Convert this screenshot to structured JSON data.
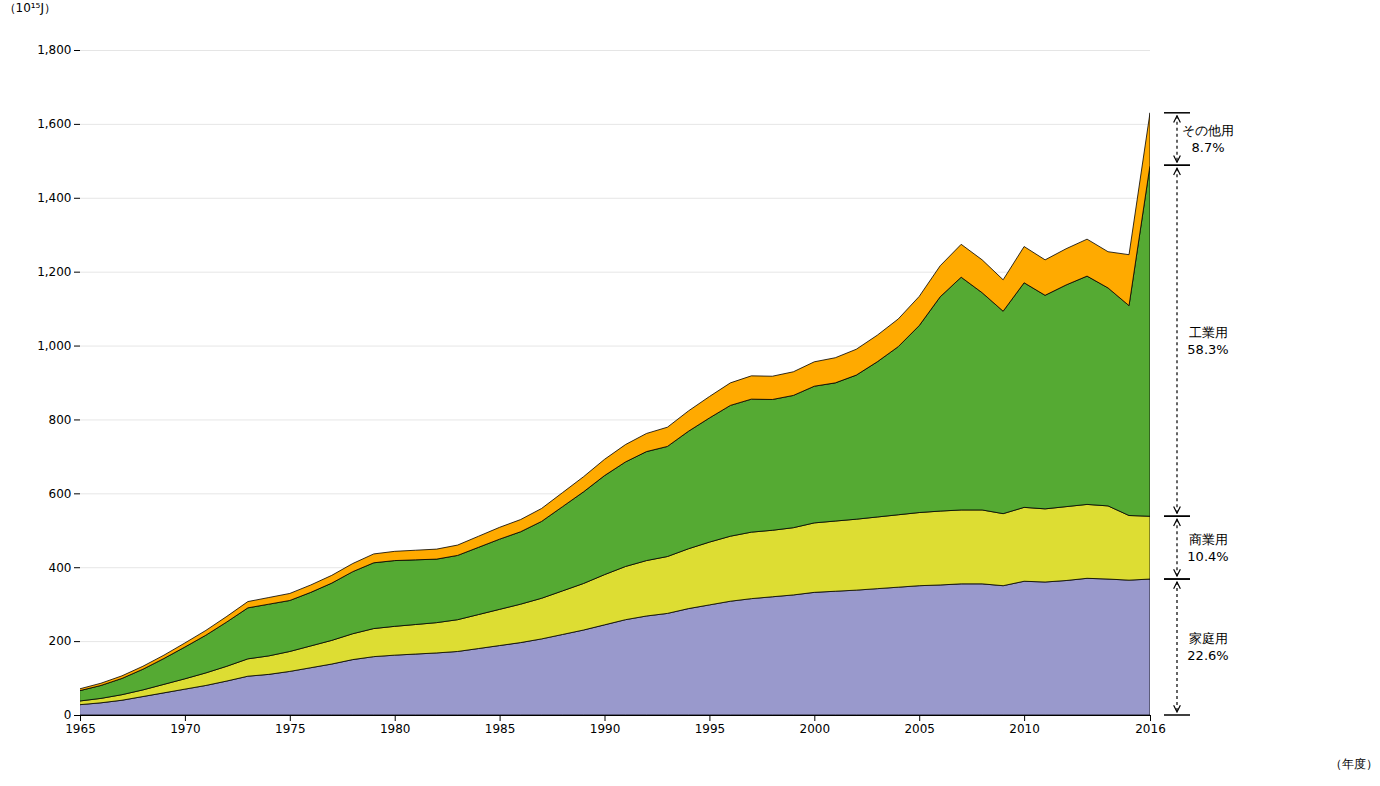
{
  "chart_data": {
    "type": "area",
    "stacked": true,
    "x": [
      1965,
      1966,
      1967,
      1968,
      1969,
      1970,
      1971,
      1972,
      1973,
      1974,
      1975,
      1976,
      1977,
      1978,
      1979,
      1980,
      1981,
      1982,
      1983,
      1984,
      1985,
      1986,
      1987,
      1988,
      1989,
      1990,
      1991,
      1992,
      1993,
      1994,
      1995,
      1996,
      1997,
      1998,
      1999,
      2000,
      2001,
      2002,
      2003,
      2004,
      2005,
      2006,
      2007,
      2008,
      2009,
      2010,
      2011,
      2012,
      2013,
      2014,
      2015,
      2016
    ],
    "series": [
      {
        "name": "家庭用",
        "color": "#9999cc",
        "values": [
          28,
          33,
          40,
          50,
          60,
          70,
          80,
          92,
          105,
          110,
          118,
          128,
          138,
          150,
          158,
          162,
          165,
          168,
          172,
          180,
          188,
          196,
          206,
          218,
          230,
          244,
          258,
          268,
          275,
          288,
          298,
          308,
          315,
          320,
          325,
          332,
          335,
          338,
          342,
          346,
          350,
          352,
          355,
          355,
          350,
          362,
          360,
          364,
          370,
          368,
          365,
          368
        ]
      },
      {
        "name": "商業用",
        "color": "#dddd33",
        "values": [
          10,
          12,
          15,
          18,
          23,
          28,
          34,
          40,
          47,
          50,
          54,
          59,
          64,
          70,
          76,
          78,
          80,
          82,
          86,
          92,
          98,
          104,
          110,
          118,
          126,
          136,
          144,
          150,
          154,
          162,
          170,
          176,
          180,
          180,
          182,
          188,
          190,
          192,
          194,
          196,
          198,
          200,
          200,
          200,
          195,
          200,
          198,
          200,
          200,
          198,
          175,
          170
        ]
      },
      {
        "name": "工業用",
        "color": "#55aa33",
        "values": [
          28,
          35,
          44,
          56,
          70,
          86,
          102,
          120,
          138,
          140,
          138,
          145,
          155,
          168,
          178,
          178,
          175,
          172,
          174,
          182,
          190,
          196,
          208,
          228,
          248,
          268,
          283,
          295,
          298,
          318,
          336,
          354,
          360,
          354,
          358,
          370,
          374,
          390,
          420,
          455,
          506,
          580,
          630,
          588,
          548,
          608,
          578,
          600,
          618,
          590,
          568,
          950
        ]
      },
      {
        "name": "その他用",
        "color": "#ffaa00",
        "values": [
          5,
          6,
          7,
          8,
          9,
          11,
          13,
          15,
          17,
          18,
          19,
          20,
          21,
          22,
          24,
          25,
          26,
          27,
          28,
          30,
          32,
          33,
          35,
          38,
          41,
          44,
          47,
          49,
          52,
          55,
          58,
          61,
          63,
          63,
          64,
          66,
          68,
          70,
          72,
          75,
          79,
          84,
          89,
          89,
          85,
          98,
          96,
          98,
          100,
          98,
          138,
          142
        ]
      }
    ],
    "xlabel": "（年度）",
    "ylabel": "（10¹⁵J）",
    "xlim": [
      1965,
      2016
    ],
    "xticks": [
      1965,
      1970,
      1975,
      1980,
      1985,
      1990,
      1995,
      2000,
      2005,
      2010,
      2016
    ],
    "ylim": [
      0,
      1800
    ],
    "yticks": [
      0,
      200,
      400,
      600,
      800,
      {
        "value": 1000,
        "label": "1,000"
      },
      {
        "value": 1200,
        "label": "1,200"
      },
      {
        "value": 1400,
        "label": "1,400"
      },
      {
        "value": 1600,
        "label": "1,600"
      },
      {
        "value": 1800,
        "label": "1,800"
      }
    ],
    "grid": "y",
    "annotations": [
      {
        "series": "その他用",
        "text": "8.7%"
      },
      {
        "series": "工業用",
        "text": "58.3%"
      },
      {
        "series": "商業用",
        "text": "10.4%"
      },
      {
        "series": "家庭用",
        "text": "22.6%"
      }
    ]
  }
}
